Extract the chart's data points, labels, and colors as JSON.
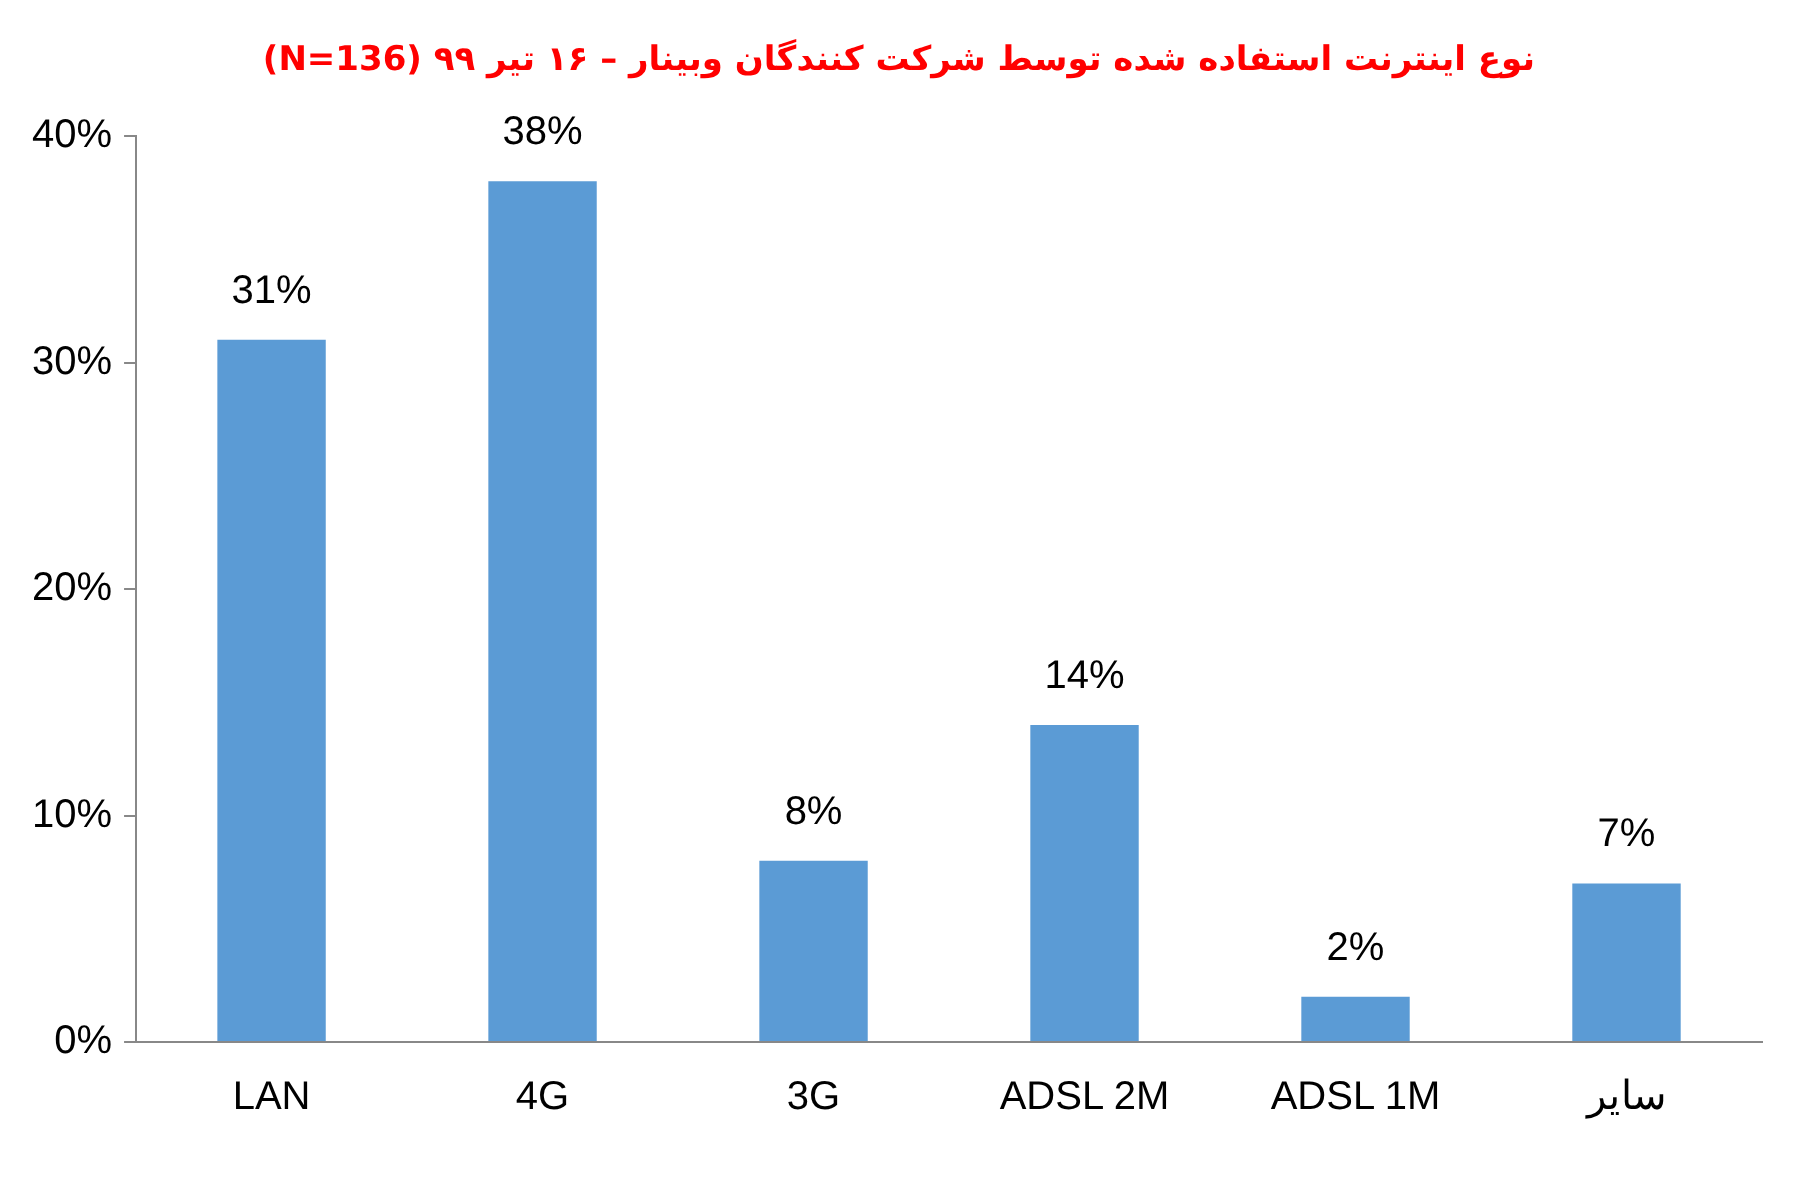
{
  "chart_data": {
    "type": "bar",
    "title": "نوع اینترنت استفاده شده توسط شرکت کنندگان وبینار – ۱۶ تیر ۹۹ (N=136)",
    "categories": [
      "LAN",
      "4G",
      "3G",
      "ADSL 2M",
      "ADSL 1M",
      "سایر"
    ],
    "values": [
      31,
      38,
      8,
      14,
      2,
      7
    ],
    "value_labels": [
      "31%",
      "38%",
      "8%",
      "14%",
      "2%",
      "7%"
    ],
    "color": "#5b9bd5",
    "ylim": [
      0,
      40
    ],
    "yticks": [
      {
        "value": 0,
        "label": "0%"
      },
      {
        "value": 10,
        "label": "10%"
      },
      {
        "value": 20,
        "label": "20%"
      },
      {
        "value": 30,
        "label": "30%"
      },
      {
        "value": 40,
        "label": "40%"
      }
    ],
    "grid": false,
    "legend": false
  }
}
